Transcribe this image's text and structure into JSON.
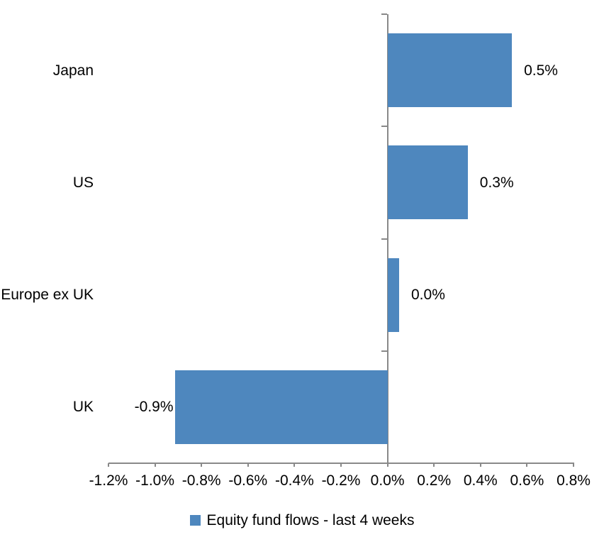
{
  "chart_data": {
    "type": "bar",
    "orientation": "horizontal",
    "title": "",
    "categories": [
      "Japan",
      "US",
      "Europe ex UK",
      "UK"
    ],
    "series": [
      {
        "name": "Equity fund flows - last 4 weeks",
        "values": [
          0.5,
          0.3,
          0.0,
          -0.9
        ],
        "value_labels": [
          "0.5%",
          "0.3%",
          "0.0%",
          "-0.9%"
        ],
        "visual_values": [
          0.535,
          0.345,
          0.05,
          -0.915
        ]
      }
    ],
    "xlabel": "",
    "ylabel": "",
    "xlim": [
      -1.2,
      0.8
    ],
    "x_ticks": [
      -1.2,
      -1.0,
      -0.8,
      -0.6,
      -0.4,
      -0.2,
      0.0,
      0.2,
      0.4,
      0.6,
      0.8
    ],
    "x_tick_labels": [
      "-1.2%",
      "-1.0%",
      "-0.8%",
      "-0.6%",
      "-0.4%",
      "-0.2%",
      "0.0%",
      "0.2%",
      "0.4%",
      "0.6%",
      "0.8%"
    ],
    "grid": false,
    "legend_position": "bottom",
    "colors": {
      "bar": "#4e87be",
      "axis": "#898989",
      "text": "#000000",
      "background": "#ffffff"
    }
  },
  "legend": {
    "label": "Equity fund flows - last 4 weeks"
  }
}
